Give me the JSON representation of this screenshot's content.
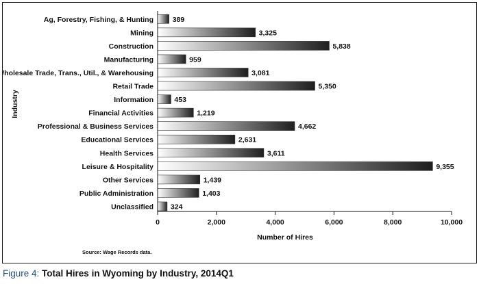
{
  "chart_data": {
    "type": "bar",
    "orientation": "horizontal",
    "categories": [
      "Ag, Forestry, Fishing, & Hunting",
      "Mining",
      "Construction",
      "Manufacturing",
      "Wholesale Trade, Trans., Util., & Warehousing",
      "Retail Trade",
      "Information",
      "Financial Activities",
      "Professional & Business Services",
      "Educational Services",
      "Health Services",
      "Leisure & Hospitality",
      "Other Services",
      "Public Administration",
      "Unclassified"
    ],
    "values": [
      389,
      3325,
      5838,
      959,
      3081,
      5350,
      453,
      1219,
      4662,
      2631,
      3611,
      9355,
      1439,
      1403,
      324
    ],
    "value_labels": [
      "389",
      "3,325",
      "5,838",
      "959",
      "3,081",
      "5,350",
      "453",
      "1,219",
      "4,662",
      "2,631",
      "3,611",
      "9,355",
      "1,439",
      "1,403",
      "324"
    ],
    "xlabel": "Number of Hires",
    "ylabel": "Industry",
    "xlim": [
      0,
      10000
    ],
    "xticks": [
      "0",
      "2,000",
      "4,000",
      "6,000",
      "8,000",
      "10,000"
    ],
    "grid": false,
    "bar_gradient": [
      "#ffffff",
      "#1e1e1e"
    ]
  },
  "source_note": "Source: Wage Records data.",
  "caption": {
    "figure_label": "Figure 4:",
    "title": "Total Hires in Wyoming by Industry, 2014Q1"
  }
}
